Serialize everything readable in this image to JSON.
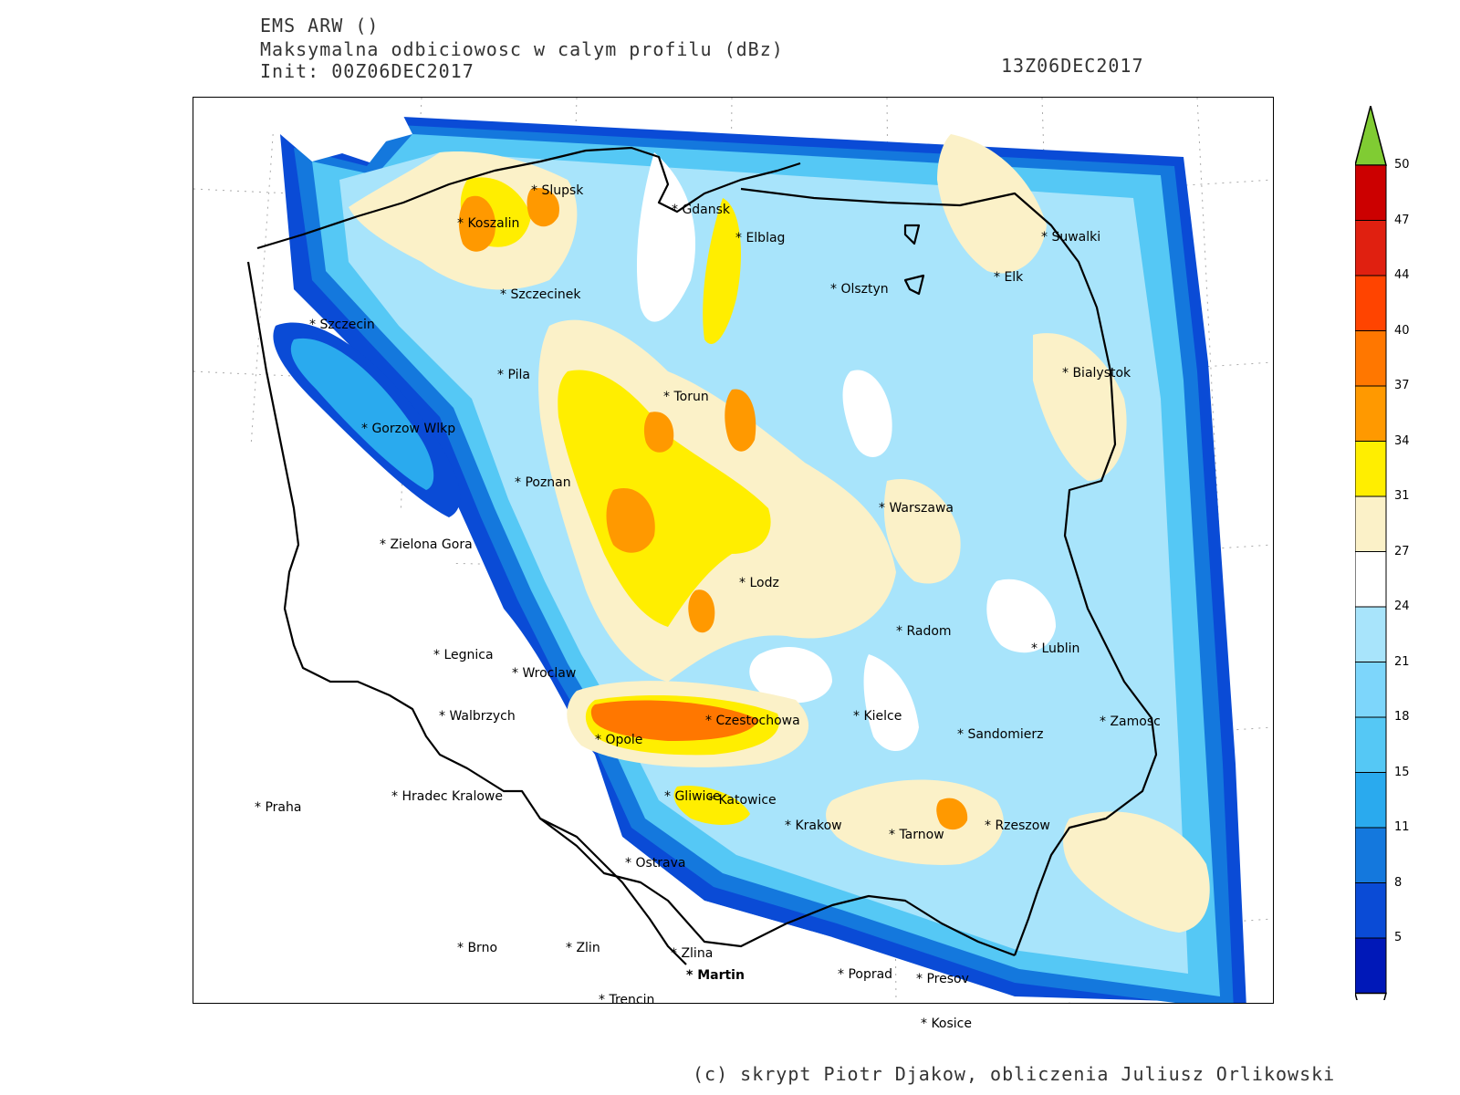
{
  "header": {
    "line1": "EMS ARW ()",
    "line2": "Maksymalna odbiciowosc w calym profilu (dBz)",
    "line3": "Init: 00Z06DEC2017",
    "valid_time": "13Z06DEC2017"
  },
  "credit": "(c) skrypt Piotr Djakow, obliczenia Juliusz Orlikowski",
  "colorbar": {
    "levels": [
      "50",
      "47",
      "44",
      "40",
      "37",
      "34",
      "31",
      "27",
      "24",
      "21",
      "18",
      "15",
      "11",
      "8",
      "5"
    ],
    "colors": [
      "#cc0000",
      "#e02010",
      "#ff4400",
      "#ff7700",
      "#ff9900",
      "#ffee00",
      "#fbf1c8",
      "#ffffff",
      "#a8e4fb",
      "#7dd6fb",
      "#55c8f5",
      "#2aaaee",
      "#1478dd",
      "#0a4bd6",
      "#0018b8"
    ],
    "above_color": "#80cc33",
    "below_color": "#ffffff"
  },
  "colors": {
    "dbz_5": "#0018b8",
    "dbz_8": "#0a4bd6",
    "dbz_11": "#1478dd",
    "dbz_15": "#2aaaee",
    "dbz_18": "#55c8f5",
    "dbz_21": "#7dd6fb",
    "dbz_24": "#a8e4fb",
    "dbz_27": "#fbf1c8",
    "dbz_31": "#ffee00",
    "dbz_34": "#ff9900",
    "dbz_37": "#ff7700",
    "border": "#000000"
  },
  "cities": [
    {
      "name": "Slupsk"
    },
    {
      "name": "Koszalin"
    },
    {
      "name": "Gdansk"
    },
    {
      "name": "Elblag"
    },
    {
      "name": "Suwalki"
    },
    {
      "name": "Elk"
    },
    {
      "name": "Olsztyn"
    },
    {
      "name": "Szczecinek"
    },
    {
      "name": "Szczecin"
    },
    {
      "name": "Pila"
    },
    {
      "name": "Bialystok"
    },
    {
      "name": "Torun"
    },
    {
      "name": "Gorzow Wlkp"
    },
    {
      "name": "Poznan"
    },
    {
      "name": "Warszawa"
    },
    {
      "name": "Zielona Gora"
    },
    {
      "name": "Lodz"
    },
    {
      "name": "Radom"
    },
    {
      "name": "Lublin"
    },
    {
      "name": "Legnica"
    },
    {
      "name": "Wroclaw"
    },
    {
      "name": "Walbrzych"
    },
    {
      "name": "Czestochowa"
    },
    {
      "name": "Kielce"
    },
    {
      "name": "Opole"
    },
    {
      "name": "Sandomierz"
    },
    {
      "name": "Zamosc"
    },
    {
      "name": "Praha"
    },
    {
      "name": "Hradec Kralowe"
    },
    {
      "name": "Gliwice"
    },
    {
      "name": "Katowice"
    },
    {
      "name": "Krakow"
    },
    {
      "name": "Tarnow"
    },
    {
      "name": "Rzeszow"
    },
    {
      "name": "Ostrava"
    },
    {
      "name": "Brno"
    },
    {
      "name": "Zlin"
    },
    {
      "name": "Zlina"
    },
    {
      "name": "Martin"
    },
    {
      "name": "Poprad"
    },
    {
      "name": "Presov"
    },
    {
      "name": "Trencin"
    },
    {
      "name": "Kosice"
    }
  ]
}
